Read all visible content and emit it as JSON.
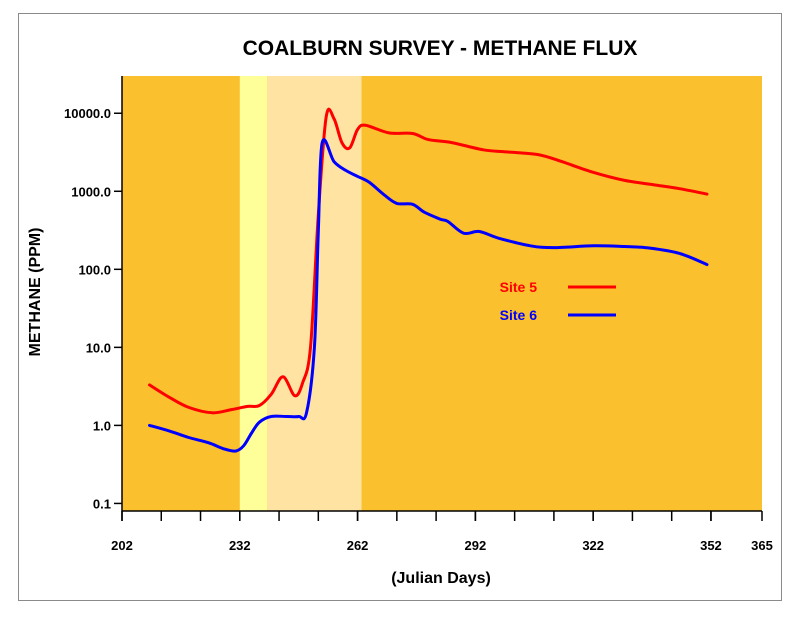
{
  "chart_data": {
    "type": "line",
    "title": "COALBURN SURVEY - METHANE FLUX",
    "xlabel": "(Julian Days)",
    "ylabel": "METHANE (PPM)",
    "x_scale": "linear",
    "y_scale": "log",
    "xlim": [
      202,
      365
    ],
    "ylim": [
      0.08,
      30000
    ],
    "x_ticks": [
      202,
      232,
      262,
      292,
      322,
      352,
      365
    ],
    "x_tick_labels": [
      "202",
      "232",
      "262",
      "292",
      "322",
      "352",
      "365"
    ],
    "y_ticks": [
      0.1,
      1,
      10,
      100,
      1000,
      10000
    ],
    "y_tick_labels": [
      "0.1",
      "1.0",
      "10.0",
      "100.0",
      "1000.0",
      "10000.0"
    ],
    "background_color": "#FBC02D",
    "bands": [
      {
        "x_start": 232,
        "x_end": 239,
        "color": "#FFFF99"
      },
      {
        "x_start": 239,
        "x_end": 263,
        "color": "#FFE3A3"
      }
    ],
    "grid": false,
    "legend_position": "center-right",
    "series": [
      {
        "name": "Site 5",
        "color": "#FF0000",
        "points": [
          [
            209,
            3.3
          ],
          [
            214,
            2.3
          ],
          [
            219,
            1.7
          ],
          [
            225,
            1.45
          ],
          [
            230,
            1.6
          ],
          [
            234,
            1.75
          ],
          [
            237,
            1.8
          ],
          [
            240,
            2.5
          ],
          [
            243,
            4.2
          ],
          [
            246,
            2.4
          ],
          [
            248,
            3.5
          ],
          [
            250,
            10
          ],
          [
            252,
            500
          ],
          [
            254,
            9000
          ],
          [
            256,
            8500
          ],
          [
            258,
            4200
          ],
          [
            260,
            3600
          ],
          [
            262,
            6200
          ],
          [
            264,
            7000
          ],
          [
            270,
            5600
          ],
          [
            276,
            5500
          ],
          [
            280,
            4600
          ],
          [
            286,
            4200
          ],
          [
            294,
            3400
          ],
          [
            300,
            3200
          ],
          [
            308,
            2950
          ],
          [
            314,
            2400
          ],
          [
            322,
            1750
          ],
          [
            330,
            1380
          ],
          [
            338,
            1200
          ],
          [
            344,
            1080
          ],
          [
            351,
            920
          ]
        ]
      },
      {
        "name": "Site 6",
        "color": "#0000FF",
        "points": [
          [
            209,
            1.0
          ],
          [
            214,
            0.85
          ],
          [
            219,
            0.7
          ],
          [
            224,
            0.6
          ],
          [
            228,
            0.5
          ],
          [
            231,
            0.47
          ],
          [
            233,
            0.55
          ],
          [
            235,
            0.8
          ],
          [
            237,
            1.1
          ],
          [
            240,
            1.3
          ],
          [
            244,
            1.3
          ],
          [
            247,
            1.3
          ],
          [
            249,
            1.45
          ],
          [
            251,
            10
          ],
          [
            252,
            300
          ],
          [
            253,
            4200
          ],
          [
            256,
            2400
          ],
          [
            259,
            1850
          ],
          [
            262,
            1550
          ],
          [
            265,
            1300
          ],
          [
            269,
            880
          ],
          [
            272,
            700
          ],
          [
            276,
            680
          ],
          [
            279,
            540
          ],
          [
            283,
            440
          ],
          [
            285,
            410
          ],
          [
            289,
            290
          ],
          [
            293,
            305
          ],
          [
            298,
            250
          ],
          [
            306,
            200
          ],
          [
            312,
            190
          ],
          [
            322,
            200
          ],
          [
            330,
            196
          ],
          [
            336,
            188
          ],
          [
            344,
            160
          ],
          [
            351,
            115
          ]
        ]
      }
    ]
  }
}
